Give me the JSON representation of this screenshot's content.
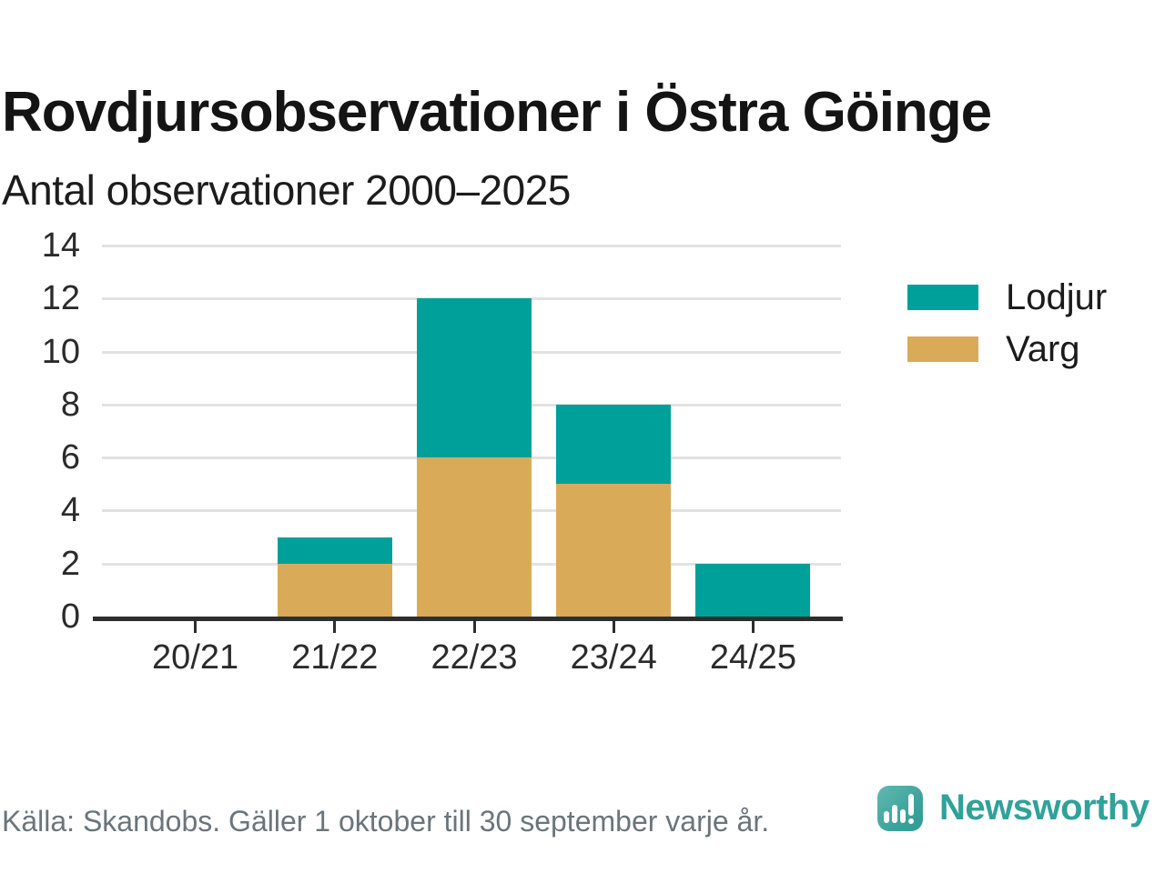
{
  "chart_data": {
    "type": "bar",
    "stacked": true,
    "title": "Rovdjursobservationer i Östra Göinge",
    "subtitle": "Antal observationer 2000–2025",
    "categories": [
      "20/21",
      "21/22",
      "22/23",
      "23/24",
      "24/25"
    ],
    "series": [
      {
        "name": "Lodjur",
        "color": "#00a09a",
        "values": [
          0,
          1,
          6,
          3,
          2
        ]
      },
      {
        "name": "Varg",
        "color": "#d9ab59",
        "values": [
          0,
          2,
          6,
          5,
          0
        ]
      }
    ],
    "totals": [
      0,
      3,
      12,
      8,
      2
    ],
    "yticks": [
      0,
      2,
      4,
      6,
      8,
      10,
      12,
      14
    ],
    "ylim": [
      0,
      14
    ],
    "grid": "horizontal",
    "legend_position": "right"
  },
  "footer": {
    "source_note": "Källa: Skandobs. Gäller 1 oktober till 30 september varje år.",
    "brand": "Newsworthy",
    "brand_color": "#2fa29a"
  }
}
